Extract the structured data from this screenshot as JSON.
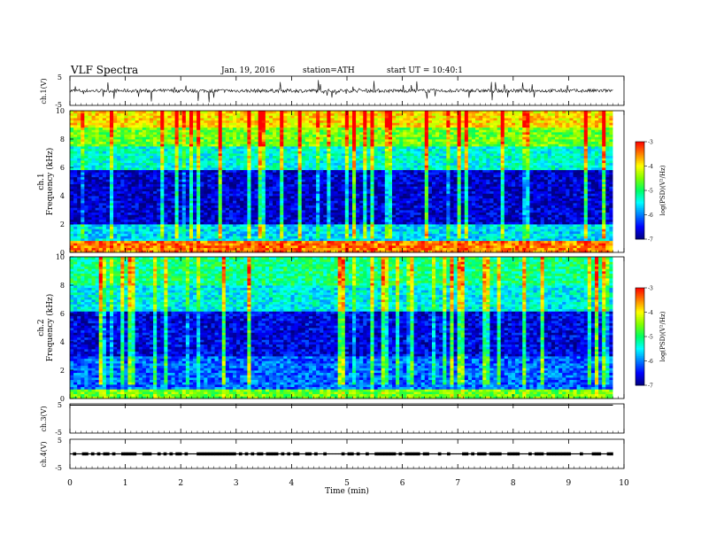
{
  "header": {
    "title": "VLF  Spectra",
    "date": "Jan. 19, 2016",
    "station": "station=ATH",
    "start": "start  UT  =    10:40:1"
  },
  "chart_data": [
    {
      "type": "line",
      "panel": "ch1-waveform",
      "ylabel": "ch.1(V)",
      "yticks": [
        "5",
        "-5"
      ],
      "ylim": [
        -5,
        5
      ],
      "xlim": [
        0,
        10
      ],
      "baseline": 0,
      "noise_amplitude": 1.2,
      "spike_amplitude": 3.5,
      "data_end_min": 9.8
    },
    {
      "type": "heatmap",
      "panel": "ch1-spectrogram",
      "ylabel_channel": "ch.1",
      "ylabel": "Frequency  (kHz)",
      "yticks": [
        "0",
        "2",
        "4",
        "6",
        "8",
        "10"
      ],
      "ylim": [
        0,
        10
      ],
      "xlim": [
        0,
        10
      ],
      "data_end_min": 9.8,
      "colorbar": {
        "label": "log(PSD)(V²/Hz)",
        "ticks": [
          "-3",
          "-4",
          "-5",
          "-6",
          "-7"
        ],
        "range": [
          -7,
          -3
        ]
      },
      "bands_khz": [
        {
          "from": 0,
          "to": 0.8,
          "level": -3.5
        },
        {
          "from": 0.8,
          "to": 2.0,
          "level": -5.6
        },
        {
          "from": 2.0,
          "to": 5.8,
          "level": -6.7
        },
        {
          "from": 5.8,
          "to": 7.5,
          "level": -5.4
        },
        {
          "from": 7.5,
          "to": 8.8,
          "level": -4.6
        },
        {
          "from": 8.8,
          "to": 10,
          "level": -3.9
        }
      ]
    },
    {
      "type": "heatmap",
      "panel": "ch2-spectrogram",
      "ylabel_channel": "ch.2",
      "ylabel": "Frequency  (kHz)",
      "yticks": [
        "0",
        "2",
        "4",
        "6",
        "8",
        "10"
      ],
      "ylim": [
        0,
        10
      ],
      "xlim": [
        0,
        10
      ],
      "data_end_min": 9.8,
      "colorbar": {
        "label": "log(PSD)(V²/Hz)",
        "ticks": [
          "-3",
          "-4",
          "-5",
          "-6",
          "-7"
        ],
        "range": [
          -7,
          -3
        ]
      },
      "bands_khz": [
        {
          "from": 0,
          "to": 0.6,
          "level": -4.6
        },
        {
          "from": 0.6,
          "to": 3.0,
          "level": -6.1
        },
        {
          "from": 3.0,
          "to": 6.2,
          "level": -6.6
        },
        {
          "from": 6.2,
          "to": 8.0,
          "level": -5.5
        },
        {
          "from": 8.0,
          "to": 10,
          "level": -5.1
        }
      ]
    },
    {
      "type": "line",
      "panel": "ch3-waveform",
      "ylabel": "ch.3(V)",
      "yticks": [
        "5",
        "-5"
      ],
      "ylim": [
        -5,
        5
      ],
      "xlim": [
        0,
        10
      ],
      "baseline": 5,
      "data_end_min": 9.8
    },
    {
      "type": "line",
      "panel": "ch4-waveform",
      "ylabel": "ch.4(V)",
      "yticks": [
        "5",
        "-5"
      ],
      "ylim": [
        -5,
        5
      ],
      "xlim": [
        0,
        10
      ],
      "baseline": 0,
      "data_end_min": 9.8
    }
  ],
  "xaxis": {
    "label": "Time  (min)",
    "ticks": [
      "0",
      "1",
      "2",
      "3",
      "4",
      "5",
      "6",
      "7",
      "8",
      "9",
      "10"
    ]
  },
  "colors": {
    "colormap": [
      "#000080",
      "#0000ff",
      "#0080ff",
      "#00ffff",
      "#00ff60",
      "#80ff00",
      "#ffff00",
      "#ff8000",
      "#ff0000",
      "#ffffff"
    ]
  }
}
